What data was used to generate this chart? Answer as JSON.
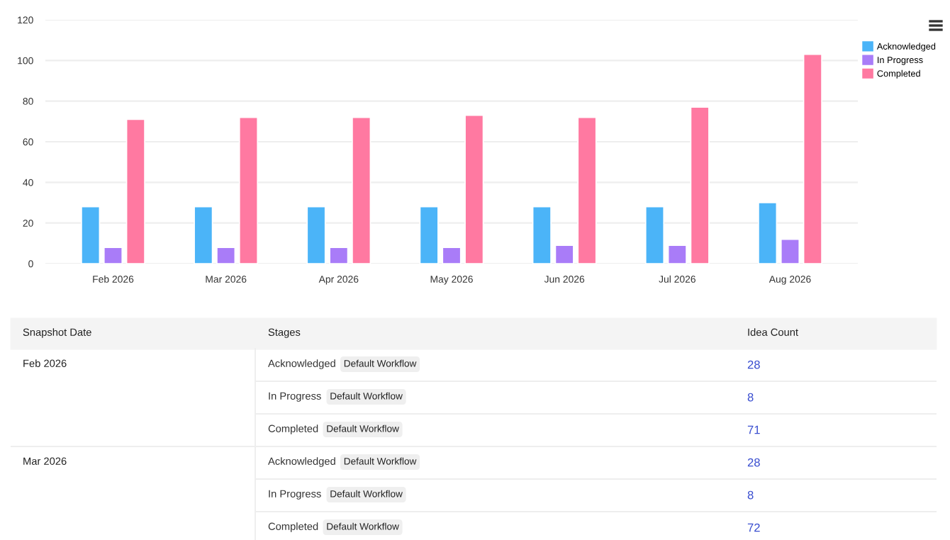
{
  "chart_data": {
    "type": "bar",
    "categories": [
      "Feb 2026",
      "Mar 2026",
      "Apr 2026",
      "May 2026",
      "Jun 2026",
      "Jul 2026",
      "Aug 2026"
    ],
    "series": [
      {
        "name": "Acknowledged",
        "color": "#4bb4f8",
        "values": [
          28,
          28,
          28,
          28,
          28,
          28,
          30
        ]
      },
      {
        "name": "In Progress",
        "color": "#a97cf8",
        "values": [
          8,
          8,
          8,
          8,
          9,
          9,
          12
        ]
      },
      {
        "name": "Completed",
        "color": "#ff79a1",
        "values": [
          71,
          72,
          72,
          73,
          72,
          77,
          103
        ]
      }
    ],
    "ylim": [
      0,
      120
    ],
    "yticks": [
      0,
      20,
      40,
      60,
      80,
      100,
      120
    ],
    "grid": "y",
    "legend": "top right",
    "annotations": [
      "Snapshot Date",
      "Stages",
      "Idea Count",
      "Feb 2026",
      "Acknowledged",
      "Default Workflow",
      "28",
      "In Progress",
      "Default Workflow",
      "8",
      "Completed",
      "Default Workflow",
      "71",
      "Mar 2026",
      "Acknowledged",
      "Default Workflow",
      "28",
      "In Progress",
      "Default Workflow",
      "8",
      "Completed",
      "Default Workflow",
      "72"
    ]
  }
}
